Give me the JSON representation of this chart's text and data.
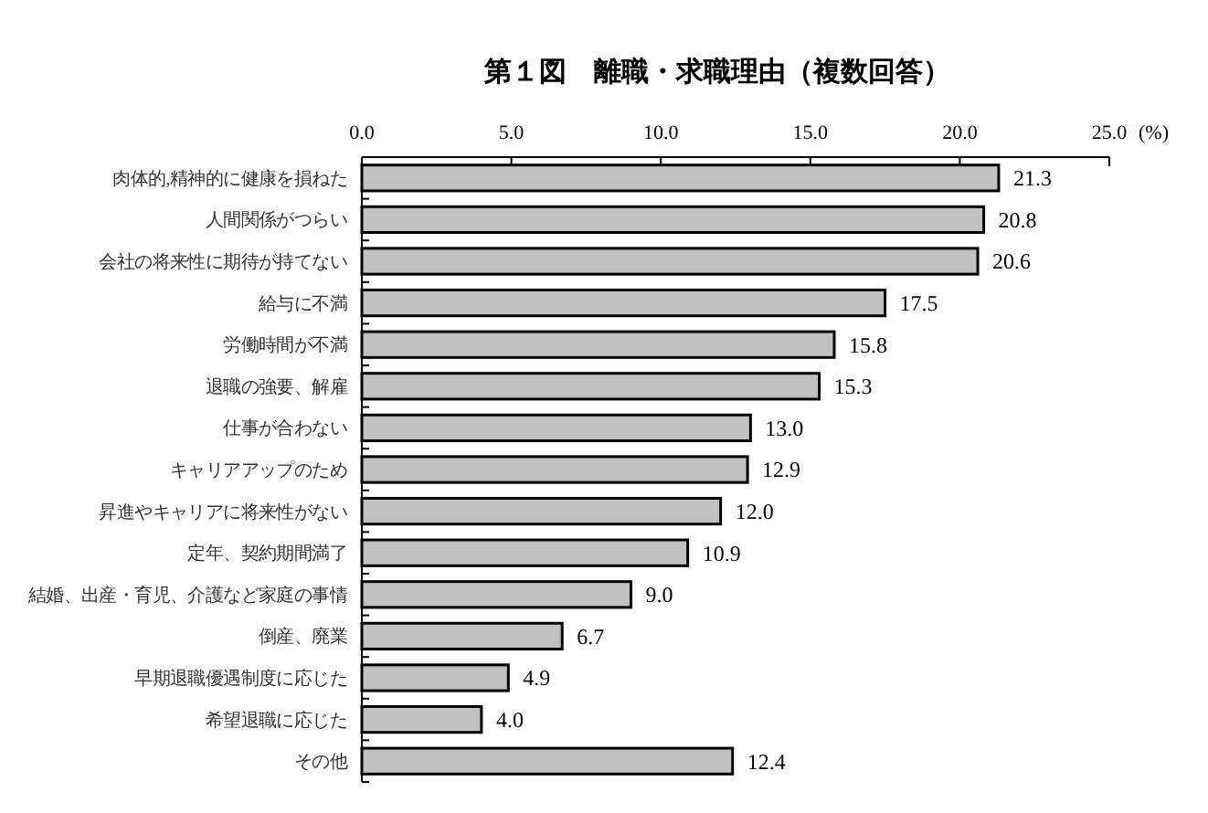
{
  "chart_data": {
    "type": "bar",
    "orientation": "horizontal",
    "title": "第１図　離職・求職理由（複数回答）",
    "xlabel": "(%)",
    "categories": [
      "肉体的,精神的に健康を損ねた",
      "人間関係がつらい",
      "会社の将来性に期待が持てない",
      "給与に不満",
      "労働時間が不満",
      "退職の強要、解雇",
      "仕事が合わない",
      "キャリアアップのため",
      "昇進やキャリアに将来性がない",
      "定年、契約期間満了",
      "結婚、出産・育児、介護など家庭の事情",
      "倒産、廃業",
      "早期退職優遇制度に応じた",
      "希望退職に応じた",
      "その他"
    ],
    "values": [
      21.3,
      20.8,
      20.6,
      17.5,
      15.8,
      15.3,
      13.0,
      12.9,
      12.0,
      10.9,
      9.0,
      6.7,
      4.9,
      4.0,
      12.4
    ],
    "color": "#c0c0c0",
    "xlim": [
      0,
      25
    ],
    "xticks": [
      {
        "value": 0,
        "label": "0.0"
      },
      {
        "value": 5,
        "label": "5.0"
      },
      {
        "value": 10,
        "label": "10.0"
      },
      {
        "value": 15,
        "label": "15.0"
      },
      {
        "value": 20,
        "label": "20.0"
      },
      {
        "value": 25,
        "label": "25.0"
      }
    ],
    "value_labels": [
      "21.3",
      "20.8",
      "20.6",
      "17.5",
      "15.8",
      "15.3",
      "13.0",
      "12.9",
      "12.0",
      "10.9",
      "9.0",
      "6.7",
      "4.9",
      "4.0",
      "12.4"
    ],
    "grid": false
  }
}
